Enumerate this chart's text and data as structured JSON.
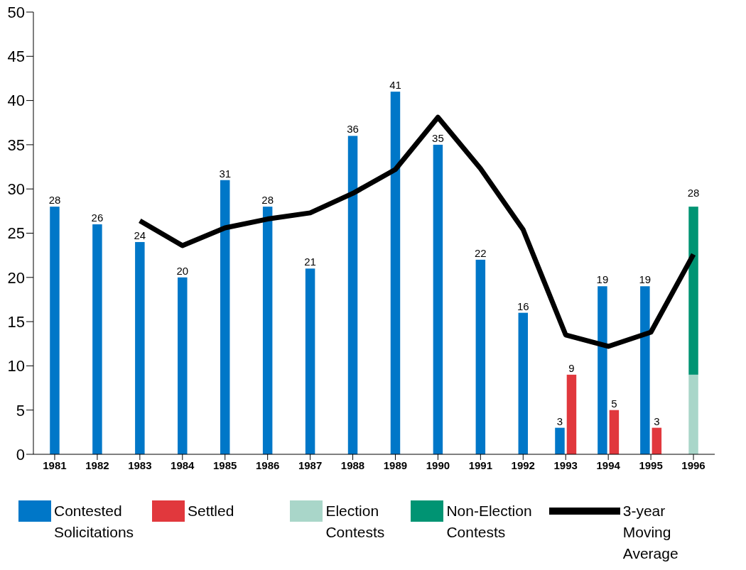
{
  "chart_data": {
    "type": "bar",
    "categories": [
      "1981",
      "1982",
      "1983",
      "1984",
      "1985",
      "1986",
      "1987",
      "1988",
      "1989",
      "1990",
      "1991",
      "1992",
      "1993",
      "1994",
      "1995",
      "1996"
    ],
    "ylim": [
      0,
      50
    ],
    "yticks": [
      0,
      5,
      10,
      15,
      20,
      25,
      30,
      35,
      40,
      45,
      50
    ],
    "grid": false,
    "legend": "bottom",
    "series": [
      {
        "name": "Contested Solicitations",
        "color": "#0077c8",
        "values": [
          28,
          26,
          24,
          20,
          31,
          28,
          21,
          36,
          41,
          35,
          22,
          16,
          3,
          19,
          19,
          null
        ],
        "value_labels": [
          "28",
          "26",
          "24",
          "20",
          "31",
          "28",
          "21",
          "36",
          "41",
          "35",
          "22",
          "16",
          "3",
          "19",
          "19",
          null
        ]
      },
      {
        "name": "Settled",
        "color": "#e1383d",
        "values": [
          null,
          null,
          null,
          null,
          null,
          null,
          null,
          null,
          null,
          null,
          null,
          null,
          9,
          5,
          3,
          null
        ],
        "value_labels": [
          null,
          null,
          null,
          null,
          null,
          null,
          null,
          null,
          null,
          null,
          null,
          null,
          "9",
          "5",
          "3",
          null
        ]
      },
      {
        "name": "Election Contests",
        "color": "#a9d6c9",
        "values": [
          null,
          null,
          null,
          null,
          null,
          null,
          null,
          null,
          null,
          null,
          null,
          null,
          null,
          null,
          null,
          9
        ]
      },
      {
        "name": "Non-Election Contests",
        "color": "#009473",
        "values": [
          null,
          null,
          null,
          null,
          null,
          null,
          null,
          null,
          null,
          null,
          null,
          null,
          null,
          null,
          null,
          19
        ],
        "base": [
          null,
          null,
          null,
          null,
          null,
          null,
          null,
          null,
          null,
          null,
          null,
          null,
          null,
          null,
          null,
          9
        ]
      },
      {
        "name": "3-year Moving Average",
        "type": "line",
        "color": "#000000",
        "values": [
          null,
          null,
          26.4,
          23.6,
          25.6,
          26.6,
          27.3,
          29.5,
          32.2,
          38.1,
          32.3,
          25.4,
          13.5,
          12.2,
          13.8,
          22.6
        ]
      }
    ],
    "totals": [
      null,
      null,
      null,
      null,
      null,
      null,
      null,
      null,
      null,
      null,
      null,
      null,
      null,
      null,
      null,
      "28"
    ]
  }
}
